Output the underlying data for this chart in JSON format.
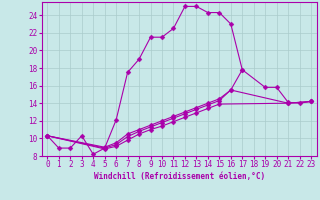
{
  "xlabel": "Windchill (Refroidissement éolien,°C)",
  "xlim": [
    -0.5,
    23.5
  ],
  "ylim": [
    8,
    25.5
  ],
  "xticks": [
    0,
    1,
    2,
    3,
    4,
    5,
    6,
    7,
    8,
    9,
    10,
    11,
    12,
    13,
    14,
    15,
    16,
    17,
    18,
    19,
    20,
    21,
    22,
    23
  ],
  "yticks": [
    8,
    10,
    12,
    14,
    16,
    18,
    20,
    22,
    24
  ],
  "bg_color": "#c8e8e8",
  "line_color": "#aa00aa",
  "grid_color": "#aacccc",
  "line1_x": [
    0,
    1,
    2,
    3,
    4,
    5,
    6,
    7,
    8,
    9,
    10,
    11,
    12,
    13,
    14,
    15,
    16,
    17
  ],
  "line1_y": [
    10.3,
    8.9,
    8.9,
    10.3,
    8.2,
    8.9,
    12.1,
    17.5,
    19.0,
    21.5,
    21.5,
    22.5,
    25.0,
    25.0,
    24.3,
    24.3,
    23.0,
    17.8
  ],
  "line2_x": [
    0,
    5,
    6,
    7,
    8,
    9,
    10,
    11,
    12,
    13,
    14,
    15,
    16,
    17,
    19,
    20,
    21,
    22,
    23
  ],
  "line2_y": [
    10.3,
    9.0,
    9.5,
    10.5,
    11.0,
    11.5,
    12.0,
    12.5,
    13.0,
    13.5,
    14.0,
    14.5,
    15.5,
    17.8,
    15.8,
    15.8,
    14.1,
    14.0,
    14.2
  ],
  "line3_x": [
    0,
    5,
    6,
    7,
    8,
    9,
    10,
    11,
    12,
    13,
    14,
    15,
    16,
    21,
    23
  ],
  "line3_y": [
    10.3,
    8.9,
    9.3,
    10.2,
    10.8,
    11.3,
    11.8,
    12.3,
    12.8,
    13.3,
    13.8,
    14.3,
    15.5,
    14.0,
    14.2
  ],
  "line4_x": [
    0,
    5,
    6,
    7,
    8,
    9,
    10,
    11,
    12,
    13,
    14,
    15,
    21,
    23
  ],
  "line4_y": [
    10.3,
    8.8,
    9.1,
    9.8,
    10.5,
    11.0,
    11.4,
    11.9,
    12.4,
    12.9,
    13.4,
    13.9,
    14.0,
    14.2
  ],
  "tick_fontsize": 5.5,
  "xlabel_fontsize": 5.5
}
